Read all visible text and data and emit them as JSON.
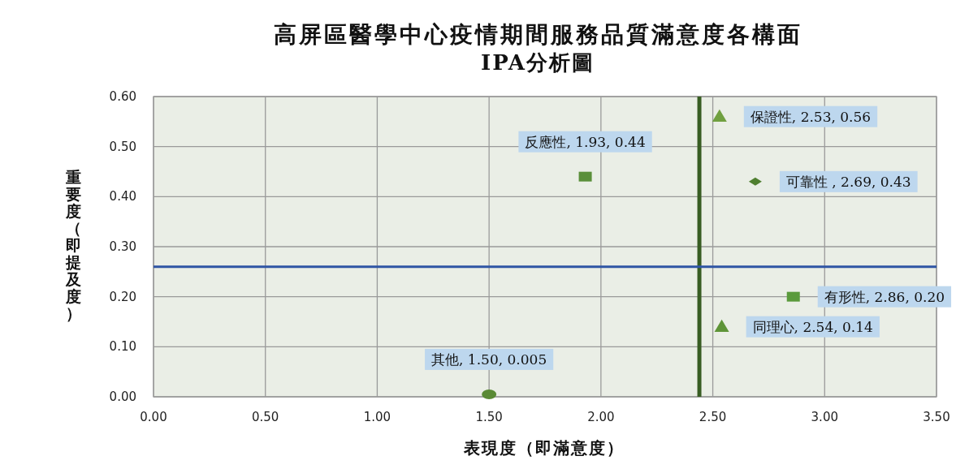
{
  "chart_data": {
    "type": "scatter",
    "title": "高屏區醫學中心疫情期間服務品質滿意度各構面",
    "subtitle": "IPA分析圖",
    "xlabel": "表現度（即滿意度）",
    "ylabel": "重要度（即提及度）",
    "xlim": [
      0,
      3.5
    ],
    "ylim": [
      0,
      0.6
    ],
    "xticks": [
      {
        "value": 0,
        "label": "0.00"
      },
      {
        "value": 0.5,
        "label": "0.50"
      },
      {
        "value": 1,
        "label": "1.00"
      },
      {
        "value": 1.5,
        "label": "1.50"
      },
      {
        "value": 2,
        "label": "2.00"
      },
      {
        "value": 2.5,
        "label": "2.50"
      },
      {
        "value": 3,
        "label": "3.00"
      },
      {
        "value": 3.5,
        "label": "3.50"
      }
    ],
    "yticks": [
      {
        "value": 0,
        "label": "0.00"
      },
      {
        "value": 0.1,
        "label": "0.10"
      },
      {
        "value": 0.2,
        "label": "0.20"
      },
      {
        "value": 0.3,
        "label": "0.30"
      },
      {
        "value": 0.4,
        "label": "0.40"
      },
      {
        "value": 0.5,
        "label": "0.50"
      },
      {
        "value": 0.6,
        "label": "0.60"
      }
    ],
    "grid": true,
    "series": [
      {
        "x": [
          2.53
        ],
        "values": [
          0.56
        ],
        "marker": "triangle",
        "color": "#70a040"
      },
      {
        "x": [
          1.93
        ],
        "values": [
          0.44
        ],
        "marker": "square",
        "color": "#5a8f3a"
      },
      {
        "x": [
          2.69
        ],
        "values": [
          0.43
        ],
        "marker": "diamond",
        "color": "#4f7f30"
      },
      {
        "x": [
          2.86
        ],
        "values": [
          0.2
        ],
        "marker": "square",
        "color": "#5a9a3c"
      },
      {
        "x": [
          2.54
        ],
        "values": [
          0.14
        ],
        "marker": "triangle",
        "color": "#5e9438"
      },
      {
        "x": [
          1.5
        ],
        "values": [
          0.005
        ],
        "marker": "circle",
        "color": "#5a8a35"
      }
    ],
    "annotations": [
      {
        "text": "保證性, 2.53, 0.56",
        "x": 2.53,
        "y": 0.56
      },
      {
        "text": "反應性, 1.93, 0.44",
        "x": 1.93,
        "y": 0.44
      },
      {
        "text": "可靠性 , 2.69, 0.43",
        "x": 2.69,
        "y": 0.43
      },
      {
        "text": "有形性, 2.86, 0.20",
        "x": 2.86,
        "y": 0.2
      },
      {
        "text": "同理心, 2.54, 0.14",
        "x": 2.54,
        "y": 0.14
      },
      {
        "text": "其他, 1.50, 0.005",
        "x": 1.5,
        "y": 0.005
      }
    ],
    "ref_lines": [
      {
        "axis": "x",
        "value": 2.44,
        "color": "#385d23"
      },
      {
        "axis": "y",
        "value": 0.26,
        "color": "#2f55a4"
      }
    ]
  }
}
